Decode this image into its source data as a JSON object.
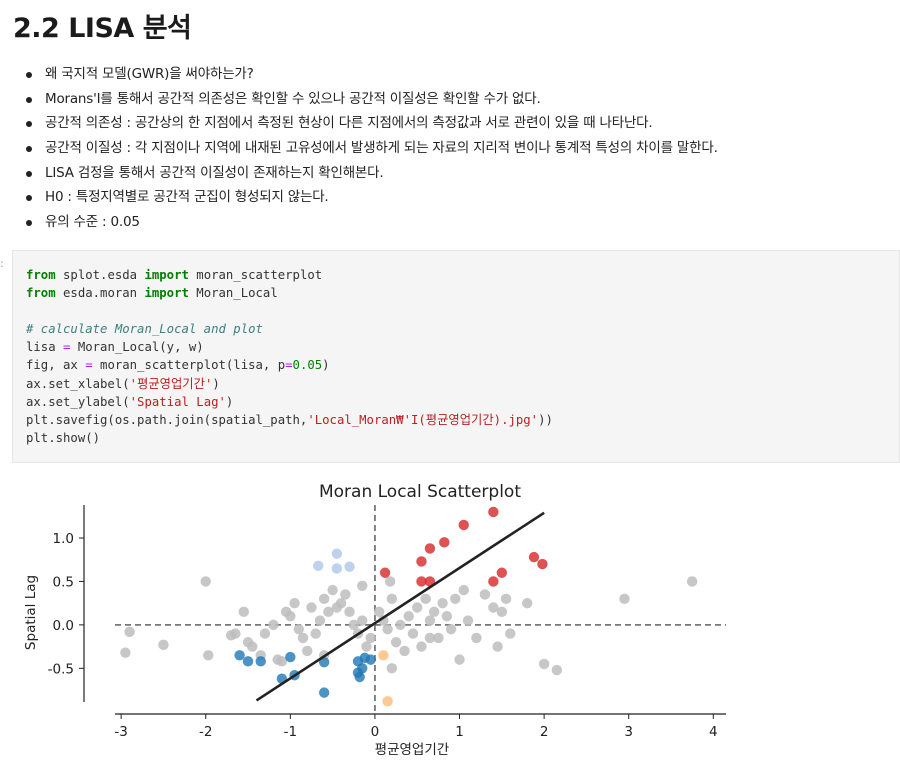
{
  "heading": "2.2 LISA 분석",
  "bullets": [
    "왜 국지적 모델(GWR)을 써야하는가?",
    "Morans'I를 통해서 공간적 의존성은 확인할 수 있으나 공간적 이질성은 확인할 수가 없다.",
    "공간적 의존성 : 공간상의 한 지점에서 측정된 현상이 다른 지점에서의 측정값과 서로 관련이 있을 때 나타난다.",
    "공간적 이질성 : 각 지점이나 지역에 내재된 고유성에서 발생하게 되는 자료의 지리적 변이나 통계적 특성의 차이를 말한다.",
    "LISA 검정을 통해서 공간적 이질성이 존재하는지 확인해본다.",
    "H0 : 특정지역별로 공간적 군집이 형성되지 않는다.",
    "유의 수준 : 0.05"
  ],
  "cell": {
    "prompt": ":",
    "code_lines": [
      [
        {
          "t": "from",
          "c": "kw"
        },
        {
          "t": " splot.esda "
        },
        {
          "t": "import",
          "c": "kw"
        },
        {
          "t": " moran_scatterplot"
        }
      ],
      [
        {
          "t": "from",
          "c": "kw"
        },
        {
          "t": " esda.moran "
        },
        {
          "t": "import",
          "c": "kw"
        },
        {
          "t": " Moran_Local"
        }
      ],
      [],
      [
        {
          "t": "# calculate Moran_Local and plot",
          "c": "com"
        }
      ],
      [
        {
          "t": "lisa "
        },
        {
          "t": "=",
          "c": "op"
        },
        {
          "t": " Moran_Local(y, w)"
        }
      ],
      [
        {
          "t": "fig, ax "
        },
        {
          "t": "=",
          "c": "op"
        },
        {
          "t": " moran_scatterplot(lisa, p"
        },
        {
          "t": "=",
          "c": "op"
        },
        {
          "t": "0.05",
          "c": "num"
        },
        {
          "t": ")"
        }
      ],
      [
        {
          "t": "ax.set_xlabel("
        },
        {
          "t": "'평균영업기간'",
          "c": "str"
        },
        {
          "t": ")"
        }
      ],
      [
        {
          "t": "ax.set_ylabel("
        },
        {
          "t": "'Spatial Lag'",
          "c": "str"
        },
        {
          "t": ")"
        }
      ],
      [
        {
          "t": "plt.savefig(os.path.join(spatial_path,"
        },
        {
          "t": "'Local_Moran₩'I(평균영업기간).jpg'",
          "c": "str"
        },
        {
          "t": "))"
        }
      ],
      [
        {
          "t": "plt.show()"
        }
      ]
    ]
  },
  "chart_data": {
    "type": "scatter",
    "title": "Moran Local Scatterplot",
    "xlabel": "평균영업기간",
    "ylabel": "Spatial Lag",
    "xlim": [
      -3.25,
      4.15
    ],
    "ylim": [
      -0.98,
      1.38
    ],
    "xticks": [
      -3,
      -2,
      -1,
      0,
      1,
      2,
      3,
      4
    ],
    "yticks": [
      -0.5,
      0.0,
      0.5,
      1.0
    ],
    "ytick_labels": [
      "-0.5",
      "0.0",
      "0.5",
      "1.0"
    ],
    "reference_lines": {
      "x": 0,
      "y": 0
    },
    "fit_line": {
      "x": [
        -1.4,
        2.0
      ],
      "y": [
        -0.87,
        1.29
      ]
    },
    "colors": {
      "hh": "#d62728",
      "lh": "#aec7e8",
      "ll": "#1f77b4",
      "hl": "#ffbb78",
      "ns": "#bdbdbd",
      "fit": "#222222",
      "ref": "#777777"
    },
    "series": [
      {
        "key": "ns",
        "points": [
          [
            -2.95,
            -0.32
          ],
          [
            -2.9,
            -0.08
          ],
          [
            -2.5,
            -0.23
          ],
          [
            -2.0,
            0.5
          ],
          [
            -1.97,
            -0.35
          ],
          [
            -1.7,
            -0.12
          ],
          [
            -1.65,
            -0.1
          ],
          [
            -1.55,
            0.15
          ],
          [
            -1.5,
            -0.2
          ],
          [
            -1.45,
            -0.25
          ],
          [
            -1.35,
            -0.35
          ],
          [
            -1.3,
            -0.1
          ],
          [
            -1.2,
            0.0
          ],
          [
            -1.15,
            -0.4
          ],
          [
            -1.1,
            -0.42
          ],
          [
            -1.05,
            0.15
          ],
          [
            -1.0,
            0.1
          ],
          [
            -0.95,
            0.25
          ],
          [
            -0.9,
            -0.05
          ],
          [
            -0.85,
            -0.15
          ],
          [
            -0.8,
            -0.3
          ],
          [
            -0.75,
            0.2
          ],
          [
            -0.7,
            -0.1
          ],
          [
            -0.65,
            0.05
          ],
          [
            -0.6,
            0.3
          ],
          [
            -0.55,
            0.15
          ],
          [
            -0.5,
            0.4
          ],
          [
            -0.45,
            0.2
          ],
          [
            -0.4,
            0.25
          ],
          [
            -0.35,
            0.35
          ],
          [
            -0.3,
            0.15
          ],
          [
            -0.25,
            0.0
          ],
          [
            -0.2,
            -0.1
          ],
          [
            -0.15,
            0.05
          ],
          [
            -0.1,
            -0.25
          ],
          [
            -0.05,
            -0.15
          ],
          [
            0.05,
            0.15
          ],
          [
            0.1,
            0.05
          ],
          [
            0.15,
            -0.05
          ],
          [
            0.2,
            0.3
          ],
          [
            0.25,
            -0.2
          ],
          [
            0.3,
            0.0
          ],
          [
            0.35,
            -0.3
          ],
          [
            0.4,
            0.1
          ],
          [
            0.45,
            -0.1
          ],
          [
            0.5,
            0.2
          ],
          [
            0.55,
            -0.25
          ],
          [
            0.6,
            0.3
          ],
          [
            0.65,
            0.05
          ],
          [
            0.7,
            0.15
          ],
          [
            0.75,
            -0.15
          ],
          [
            0.8,
            0.25
          ],
          [
            0.85,
            0.1
          ],
          [
            0.9,
            -0.05
          ],
          [
            0.95,
            0.3
          ],
          [
            1.0,
            -0.4
          ],
          [
            1.05,
            0.4
          ],
          [
            1.1,
            0.05
          ],
          [
            1.2,
            -0.15
          ],
          [
            1.3,
            0.35
          ],
          [
            1.4,
            0.2
          ],
          [
            1.45,
            -0.25
          ],
          [
            1.5,
            0.15
          ],
          [
            1.55,
            0.3
          ],
          [
            1.6,
            -0.1
          ],
          [
            1.8,
            0.25
          ],
          [
            2.0,
            -0.45
          ],
          [
            2.15,
            -0.52
          ],
          [
            2.95,
            0.3
          ],
          [
            3.75,
            0.5
          ],
          [
            0.18,
            0.5
          ],
          [
            -0.15,
            0.45
          ],
          [
            0.2,
            -0.5
          ],
          [
            -0.6,
            -0.35
          ],
          [
            0.65,
            -0.15
          ]
        ]
      },
      {
        "key": "hh",
        "points": [
          [
            0.12,
            0.6
          ],
          [
            0.55,
            0.73
          ],
          [
            0.65,
            0.88
          ],
          [
            0.55,
            0.5
          ],
          [
            0.65,
            0.5
          ],
          [
            0.82,
            0.95
          ],
          [
            1.05,
            1.15
          ],
          [
            1.4,
            1.3
          ],
          [
            1.4,
            0.5
          ],
          [
            1.5,
            0.6
          ],
          [
            1.88,
            0.78
          ],
          [
            1.98,
            0.7
          ]
        ]
      },
      {
        "key": "lh",
        "points": [
          [
            -0.67,
            0.68
          ],
          [
            -0.45,
            0.82
          ],
          [
            -0.45,
            0.65
          ],
          [
            -0.3,
            0.67
          ]
        ]
      },
      {
        "key": "ll",
        "points": [
          [
            -1.6,
            -0.35
          ],
          [
            -1.5,
            -0.42
          ],
          [
            -1.35,
            -0.42
          ],
          [
            -1.1,
            -0.62
          ],
          [
            -1.0,
            -0.37
          ],
          [
            -0.95,
            -0.58
          ],
          [
            -0.6,
            -0.43
          ],
          [
            -0.6,
            -0.78
          ],
          [
            -0.2,
            -0.42
          ],
          [
            -0.2,
            -0.55
          ],
          [
            -0.18,
            -0.6
          ],
          [
            -0.15,
            -0.5
          ],
          [
            -0.05,
            -0.4
          ],
          [
            -0.12,
            -0.38
          ]
        ]
      },
      {
        "key": "hl",
        "points": [
          [
            0.1,
            -0.35
          ],
          [
            0.15,
            -0.88
          ]
        ]
      }
    ]
  }
}
